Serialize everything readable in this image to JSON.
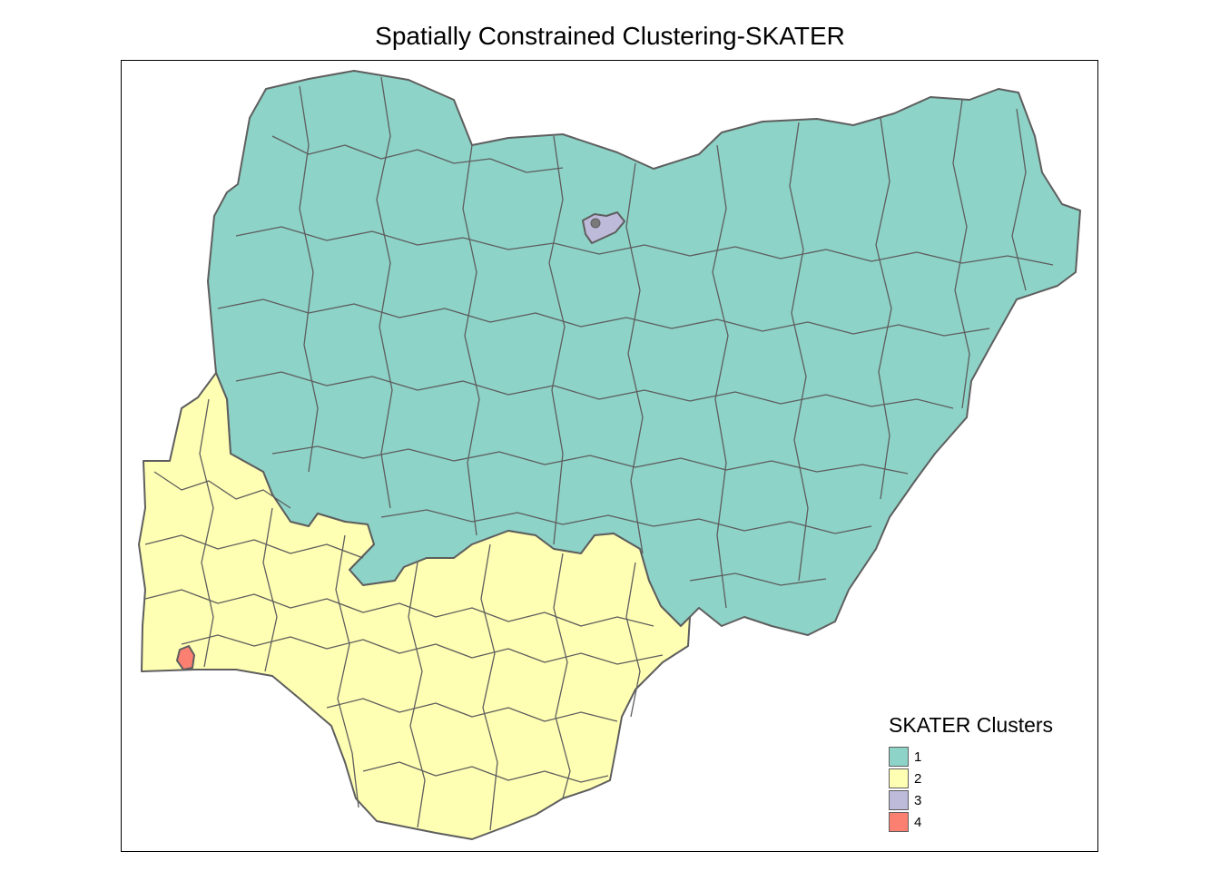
{
  "title": "Spatially Constrained Clustering-SKATER",
  "legend": {
    "title": "SKATER Clusters",
    "items": [
      {
        "label": "1",
        "color": "#8DD3C7"
      },
      {
        "label": "2",
        "color": "#FFFFB3"
      },
      {
        "label": "3",
        "color": "#BEBADA"
      },
      {
        "label": "4",
        "color": "#FB8072"
      }
    ]
  },
  "boundary_color": "#5e5e5e"
}
